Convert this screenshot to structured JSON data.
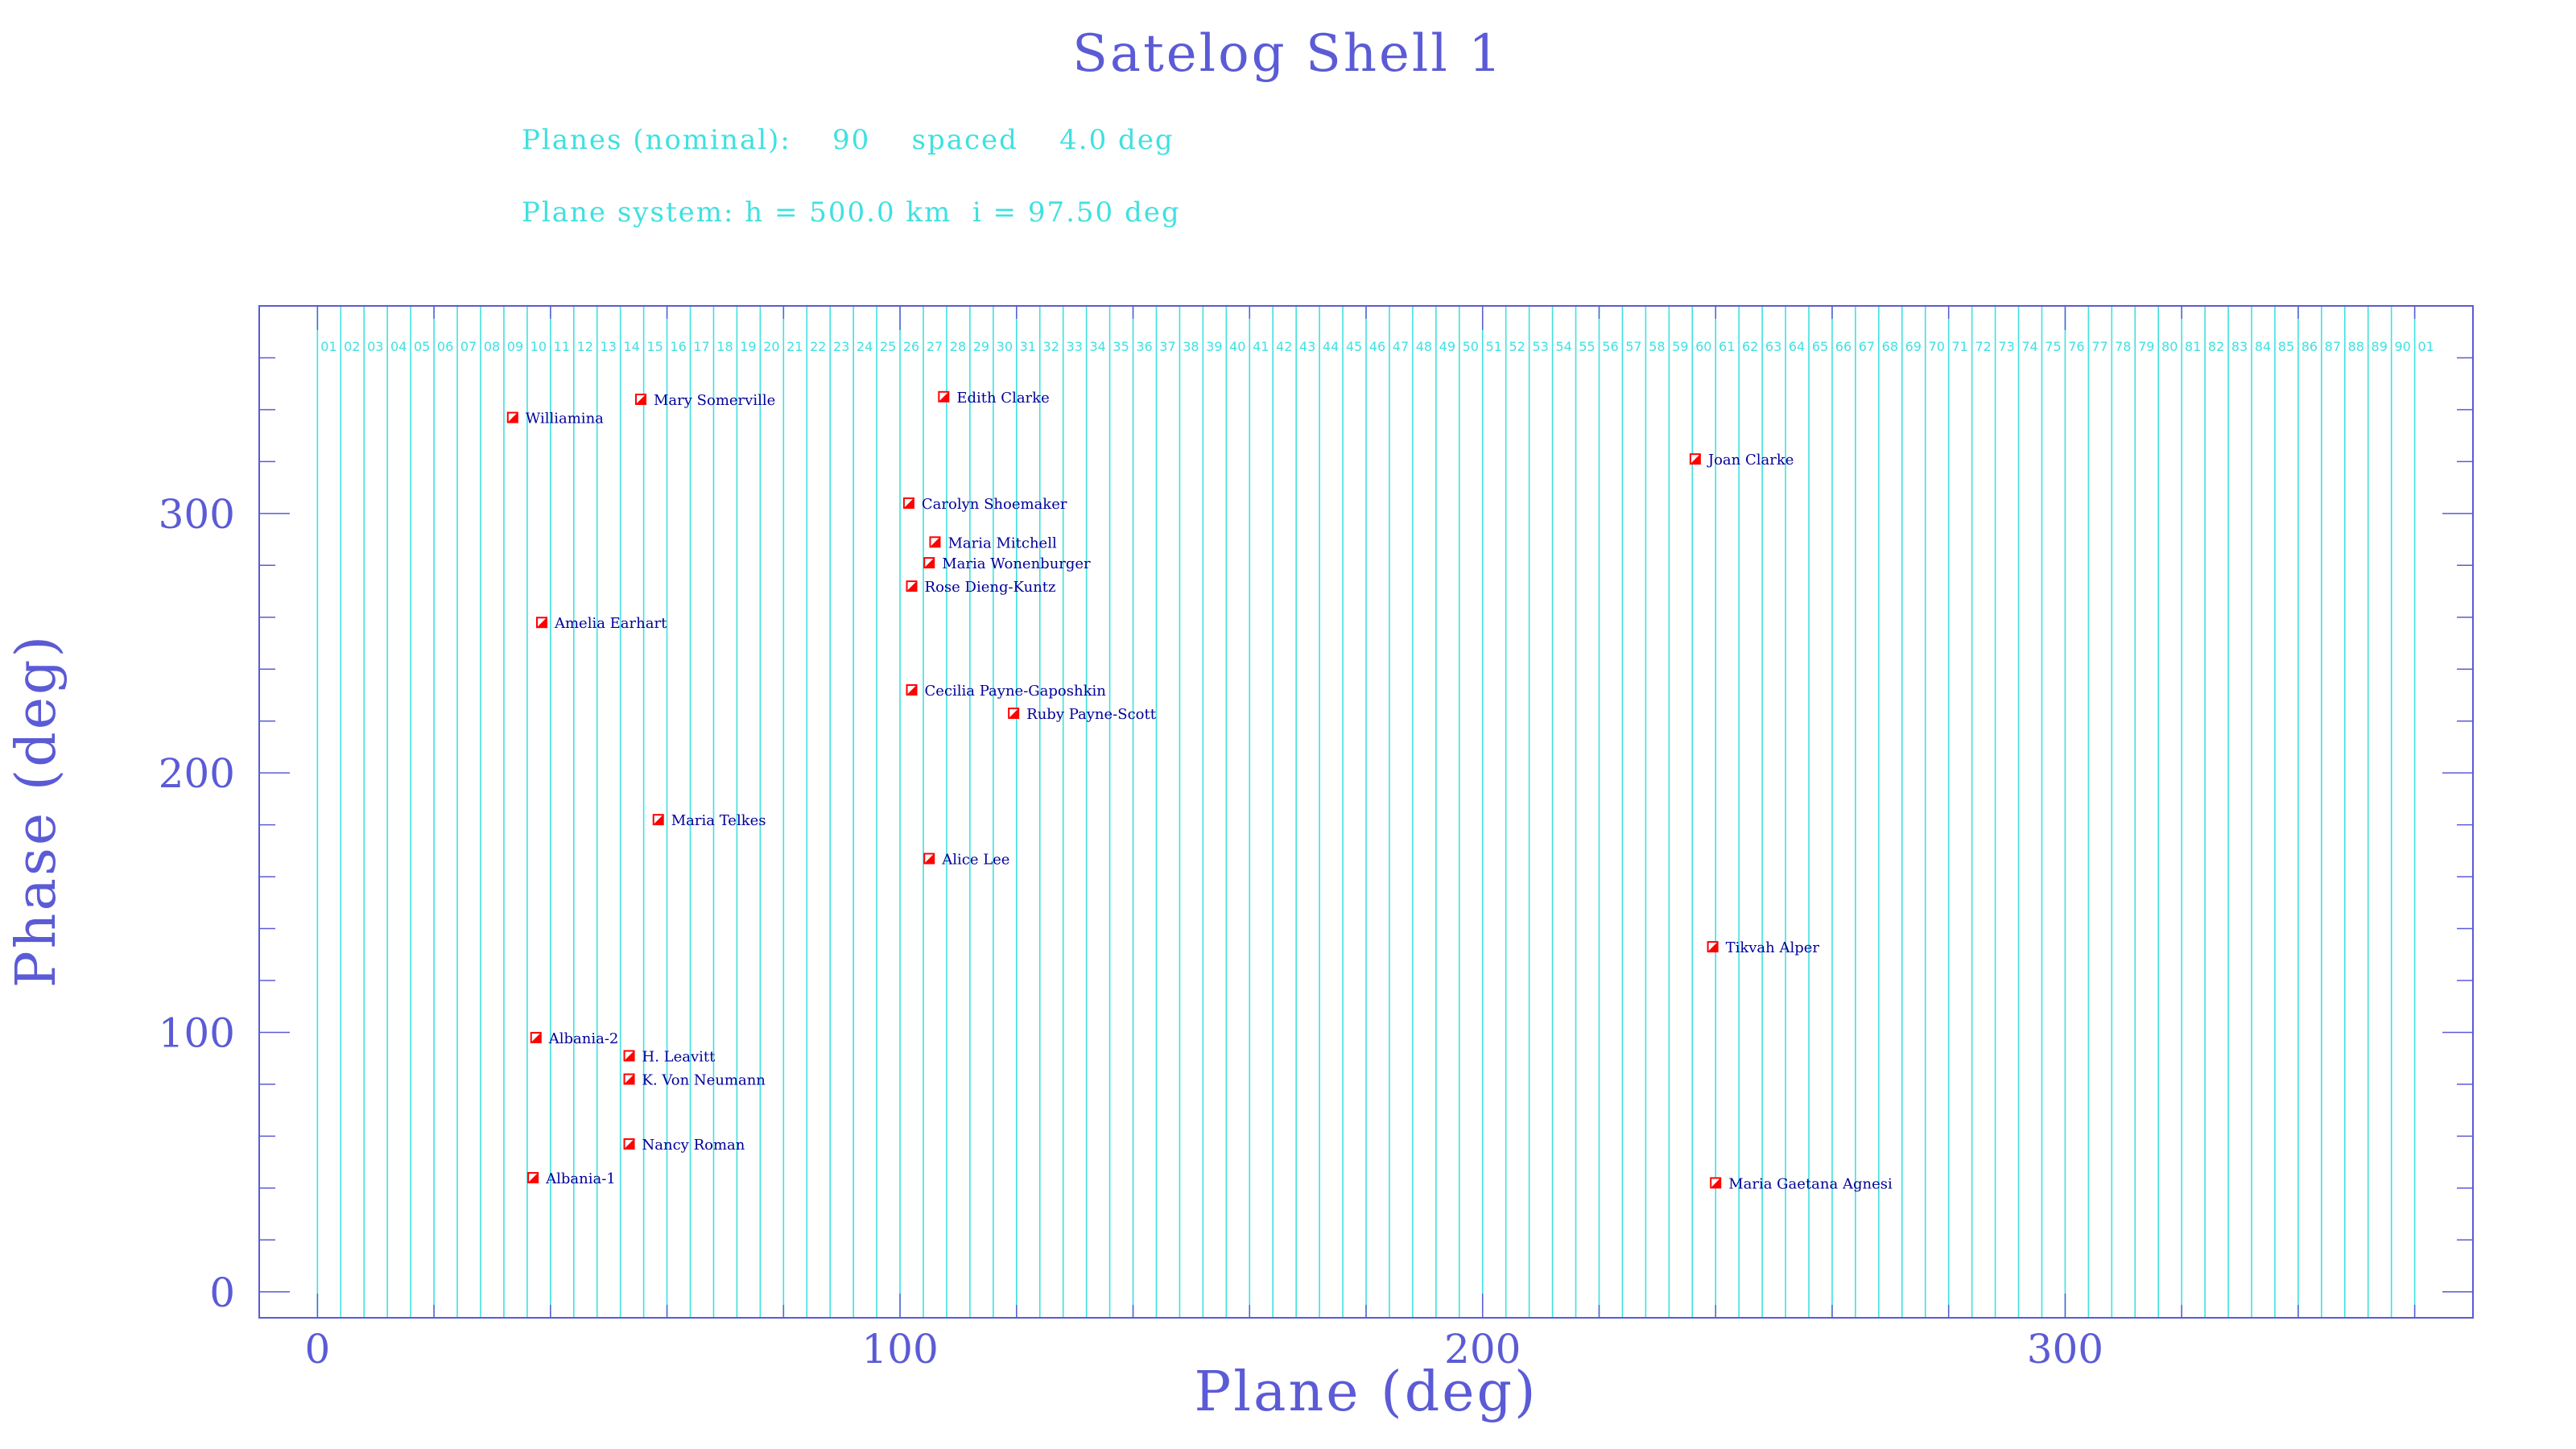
{
  "header": {
    "title": "Satelog Shell 1",
    "info_line1": "Planes (nominal):    90    spaced    4.0 deg",
    "info_line2": "Plane system: h = 500.0 km  i = 97.50 deg"
  },
  "colors": {
    "axis": "#5b5bd6",
    "planes": "#40e0e0",
    "marker": "#ff0000",
    "label": "#000099"
  },
  "chart_data": {
    "type": "scatter",
    "title": "Satelog Shell 1",
    "xlabel": "Plane (deg)",
    "ylabel": "Phase (deg)",
    "xlim": [
      -10,
      370
    ],
    "ylim": [
      -10,
      380
    ],
    "x_ticks": [
      0,
      100,
      200,
      300
    ],
    "y_ticks": [
      0,
      100,
      200,
      300
    ],
    "plane_lines": {
      "start_deg": 0,
      "spacing_deg": 4.0,
      "labels": [
        "01",
        "02",
        "03",
        "04",
        "05",
        "06",
        "07",
        "08",
        "09",
        "10",
        "11",
        "12",
        "13",
        "14",
        "15",
        "16",
        "17",
        "18",
        "19",
        "20",
        "21",
        "22",
        "23",
        "24",
        "25",
        "26",
        "27",
        "28",
        "29",
        "30",
        "31",
        "32",
        "33",
        "34",
        "35",
        "36",
        "37",
        "38",
        "39",
        "40",
        "41",
        "42",
        "43",
        "44",
        "45",
        "46",
        "47",
        "48",
        "49",
        "50",
        "51",
        "52",
        "53",
        "54",
        "55",
        "56",
        "57",
        "58",
        "59",
        "60",
        "61",
        "62",
        "63",
        "64",
        "65",
        "66",
        "67",
        "68",
        "69",
        "70",
        "71",
        "72",
        "73",
        "74",
        "75",
        "76",
        "77",
        "78",
        "79",
        "80",
        "81",
        "82",
        "83",
        "84",
        "85",
        "86",
        "87",
        "88",
        "89",
        "90",
        "01"
      ]
    },
    "points": [
      {
        "name": "Williamina",
        "x": 33.5,
        "y": 337
      },
      {
        "name": "Mary Somerville",
        "x": 55.5,
        "y": 344
      },
      {
        "name": "Edith Clarke",
        "x": 107.5,
        "y": 345
      },
      {
        "name": "Joan Clarke",
        "x": 236.5,
        "y": 321
      },
      {
        "name": "Carolyn Shoemaker",
        "x": 101.5,
        "y": 304
      },
      {
        "name": "Maria Mitchell",
        "x": 106,
        "y": 289
      },
      {
        "name": "Maria Wonenburger",
        "x": 105,
        "y": 281
      },
      {
        "name": "Rose Dieng-Kuntz",
        "x": 102,
        "y": 272
      },
      {
        "name": "Amelia Earhart",
        "x": 38.5,
        "y": 258
      },
      {
        "name": "Cecilia Payne-Gaposhkin",
        "x": 102,
        "y": 232
      },
      {
        "name": "Ruby Payne-Scott",
        "x": 119.5,
        "y": 223
      },
      {
        "name": "Maria Telkes",
        "x": 58.5,
        "y": 182
      },
      {
        "name": "Alice Lee",
        "x": 105,
        "y": 167
      },
      {
        "name": "Tikvah Alper",
        "x": 239.5,
        "y": 133
      },
      {
        "name": "Albania-2",
        "x": 37.5,
        "y": 98
      },
      {
        "name": "H. Leavitt",
        "x": 53.5,
        "y": 91
      },
      {
        "name": "K. Von Neumann",
        "x": 53.5,
        "y": 82
      },
      {
        "name": "Nancy Roman",
        "x": 53.5,
        "y": 57
      },
      {
        "name": "Albania-1",
        "x": 37,
        "y": 44
      },
      {
        "name": "Maria Gaetana Agnesi",
        "x": 240,
        "y": 42
      }
    ]
  }
}
